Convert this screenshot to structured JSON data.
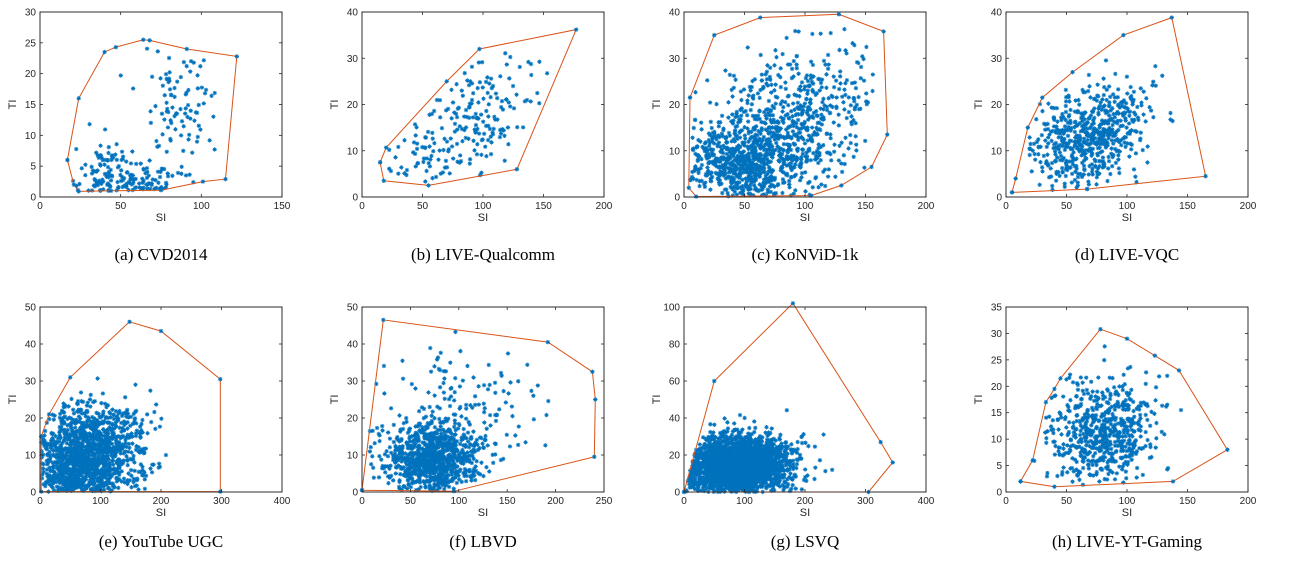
{
  "figure": {
    "colors": {
      "points": "#0072BD",
      "hull": "#D95319",
      "axes": "#262626"
    },
    "marker": "asterisk"
  },
  "chart_data": [
    {
      "type": "scatter",
      "caption": "(a)  CVD2014",
      "xlabel": "SI",
      "ylabel": "TI",
      "xlim": [
        0,
        150
      ],
      "ylim": [
        0,
        30
      ],
      "xticks": [
        0,
        50,
        100,
        150
      ],
      "yticks": [
        0,
        5,
        10,
        15,
        20,
        25,
        30
      ],
      "hull": [
        [
          17,
          6
        ],
        [
          24,
          16
        ],
        [
          40,
          23.5
        ],
        [
          47,
          24.3
        ],
        [
          64,
          25.5
        ],
        [
          68,
          25.4
        ],
        [
          91,
          24
        ],
        [
          122,
          22.8
        ],
        [
          115,
          2.9
        ],
        [
          101,
          2.5
        ],
        [
          75,
          1.1
        ],
        [
          44,
          1
        ],
        [
          24,
          0.9
        ],
        [
          21,
          2
        ],
        [
          17,
          6
        ]
      ],
      "n_points": 260,
      "seed": 11,
      "clusters": [
        {
          "cx": 55,
          "cy": 2.5,
          "sx": 22,
          "sy": 1.6,
          "w": 0.55
        },
        {
          "cx": 85,
          "cy": 16,
          "sx": 12,
          "sy": 5.5,
          "w": 0.35
        },
        {
          "cx": 45,
          "cy": 6,
          "sx": 8,
          "sy": 2,
          "w": 0.1
        }
      ]
    },
    {
      "type": "scatter",
      "caption": "(b)  LIVE-Qualcomm",
      "xlabel": "SI",
      "ylabel": "TI",
      "xlim": [
        0,
        200
      ],
      "ylim": [
        0,
        40
      ],
      "xticks": [
        0,
        50,
        100,
        150,
        200
      ],
      "yticks": [
        0,
        10,
        20,
        30,
        40
      ],
      "hull": [
        [
          15,
          7.5
        ],
        [
          20,
          10.7
        ],
        [
          70,
          25
        ],
        [
          97,
          32
        ],
        [
          177,
          36.2
        ],
        [
          128,
          6
        ],
        [
          55,
          2.5
        ],
        [
          18,
          3.5
        ],
        [
          15,
          7.5
        ]
      ],
      "n_points": 208,
      "seed": 23,
      "clusters": [
        {
          "cx": 90,
          "cy": 16,
          "sx": 30,
          "sy": 7,
          "w": 0.9,
          "corr": 0.15
        },
        {
          "cx": 45,
          "cy": 6,
          "sx": 15,
          "sy": 3,
          "w": 0.1
        }
      ]
    },
    {
      "type": "scatter",
      "caption": "(c)  KoNViD-1k",
      "xlabel": "SI",
      "ylabel": "TI",
      "xlim": [
        0,
        200
      ],
      "ylim": [
        0,
        40
      ],
      "xticks": [
        0,
        50,
        100,
        150,
        200
      ],
      "yticks": [
        0,
        10,
        20,
        30,
        40
      ],
      "hull": [
        [
          5,
          21.5
        ],
        [
          25,
          35
        ],
        [
          63,
          38.8
        ],
        [
          128,
          39.5
        ],
        [
          165,
          35.8
        ],
        [
          168,
          13.5
        ],
        [
          155,
          6.5
        ],
        [
          130,
          2.5
        ],
        [
          105,
          0.3
        ],
        [
          10,
          0.1
        ],
        [
          4,
          2
        ],
        [
          5,
          21.5
        ]
      ],
      "n_points": 1200,
      "seed": 37,
      "clusters": [
        {
          "cx": 45,
          "cy": 7,
          "sx": 25,
          "sy": 4,
          "w": 0.45
        },
        {
          "cx": 85,
          "cy": 14,
          "sx": 32,
          "sy": 8,
          "w": 0.55,
          "corr": 0.06
        }
      ]
    },
    {
      "type": "scatter",
      "caption": "(d)  LIVE-VQC",
      "xlabel": "SI",
      "ylabel": "TI",
      "xlim": [
        0,
        200
      ],
      "ylim": [
        0,
        40
      ],
      "xticks": [
        0,
        50,
        100,
        150,
        200
      ],
      "yticks": [
        0,
        10,
        20,
        30,
        40
      ],
      "hull": [
        [
          5,
          1
        ],
        [
          8,
          4
        ],
        [
          18,
          15
        ],
        [
          30,
          21.5
        ],
        [
          55,
          27
        ],
        [
          97,
          35
        ],
        [
          137,
          38.8
        ],
        [
          165,
          4.5
        ],
        [
          67,
          1.7
        ],
        [
          5,
          1
        ]
      ],
      "n_points": 585,
      "seed": 41,
      "clusters": [
        {
          "cx": 68,
          "cy": 13,
          "sx": 26,
          "sy": 5.5,
          "w": 1,
          "corr": 0.06
        }
      ]
    },
    {
      "type": "scatter",
      "caption": "(e)  YouTube UGC",
      "xlabel": "SI",
      "ylabel": "TI",
      "xlim": [
        0,
        400
      ],
      "ylim": [
        0,
        50
      ],
      "xticks": [
        0,
        100,
        200,
        300,
        400
      ],
      "yticks": [
        0,
        10,
        20,
        30,
        40,
        50
      ],
      "hull": [
        [
          2,
          15
        ],
        [
          15,
          21
        ],
        [
          50,
          31
        ],
        [
          148,
          46
        ],
        [
          200,
          43.5
        ],
        [
          298,
          30.5
        ],
        [
          298,
          0.1
        ],
        [
          2,
          0.1
        ],
        [
          2,
          15
        ]
      ],
      "n_points": 1380,
      "seed": 53,
      "clusters": [
        {
          "cx": 75,
          "cy": 9,
          "sx": 45,
          "sy": 7,
          "w": 1,
          "corr": 0.02
        }
      ]
    },
    {
      "type": "scatter",
      "caption": "(f)  LBVD",
      "xlabel": "SI",
      "ylabel": "TI",
      "xlim": [
        0,
        250
      ],
      "ylim": [
        0,
        50
      ],
      "xticks": [
        0,
        50,
        100,
        150,
        200,
        250
      ],
      "yticks": [
        0,
        10,
        20,
        30,
        40,
        50
      ],
      "hull": [
        [
          0,
          0.5
        ],
        [
          22,
          46.5
        ],
        [
          192,
          40.5
        ],
        [
          238,
          32.5
        ],
        [
          241,
          25
        ],
        [
          240,
          9.5
        ],
        [
          95,
          0.2
        ],
        [
          0,
          0.5
        ]
      ],
      "n_points": 1000,
      "seed": 67,
      "clusters": [
        {
          "cx": 72,
          "cy": 9,
          "sx": 25,
          "sy": 5,
          "w": 0.85
        },
        {
          "cx": 100,
          "cy": 20,
          "sx": 45,
          "sy": 9,
          "w": 0.15
        }
      ]
    },
    {
      "type": "scatter",
      "caption": "(g)  LSVQ",
      "xlabel": "SI",
      "ylabel": "TI",
      "xlim": [
        0,
        400
      ],
      "ylim": [
        0,
        100
      ],
      "xticks": [
        0,
        100,
        200,
        300,
        400
      ],
      "yticks": [
        0,
        20,
        40,
        60,
        80,
        100
      ],
      "hull": [
        [
          0,
          0
        ],
        [
          50,
          60
        ],
        [
          180,
          102
        ],
        [
          325,
          27
        ],
        [
          345,
          16
        ],
        [
          305,
          0
        ],
        [
          0,
          0
        ]
      ],
      "n_points": 2400,
      "seed": 79,
      "clusters": [
        {
          "cx": 85,
          "cy": 14,
          "sx": 45,
          "sy": 8,
          "w": 1,
          "corr": 0.02
        }
      ]
    },
    {
      "type": "scatter",
      "caption": "(h)  LIVE-YT-Gaming",
      "xlabel": "SI",
      "ylabel": "TI",
      "xlim": [
        0,
        200
      ],
      "ylim": [
        0,
        35
      ],
      "xticks": [
        0,
        50,
        100,
        150,
        200
      ],
      "yticks": [
        0,
        5,
        10,
        15,
        20,
        25,
        30,
        35
      ],
      "hull": [
        [
          12,
          2
        ],
        [
          22,
          6
        ],
        [
          33,
          17
        ],
        [
          40,
          19.5
        ],
        [
          45,
          21.5
        ],
        [
          78,
          30.8
        ],
        [
          100,
          29
        ],
        [
          123,
          25.8
        ],
        [
          143,
          23
        ],
        [
          183,
          8
        ],
        [
          138,
          2
        ],
        [
          40,
          1
        ],
        [
          12,
          2
        ]
      ],
      "n_points": 600,
      "seed": 97,
      "clusters": [
        {
          "cx": 80,
          "cy": 11,
          "sx": 22,
          "sy": 5,
          "w": 1,
          "corr": 0.02
        }
      ]
    }
  ]
}
